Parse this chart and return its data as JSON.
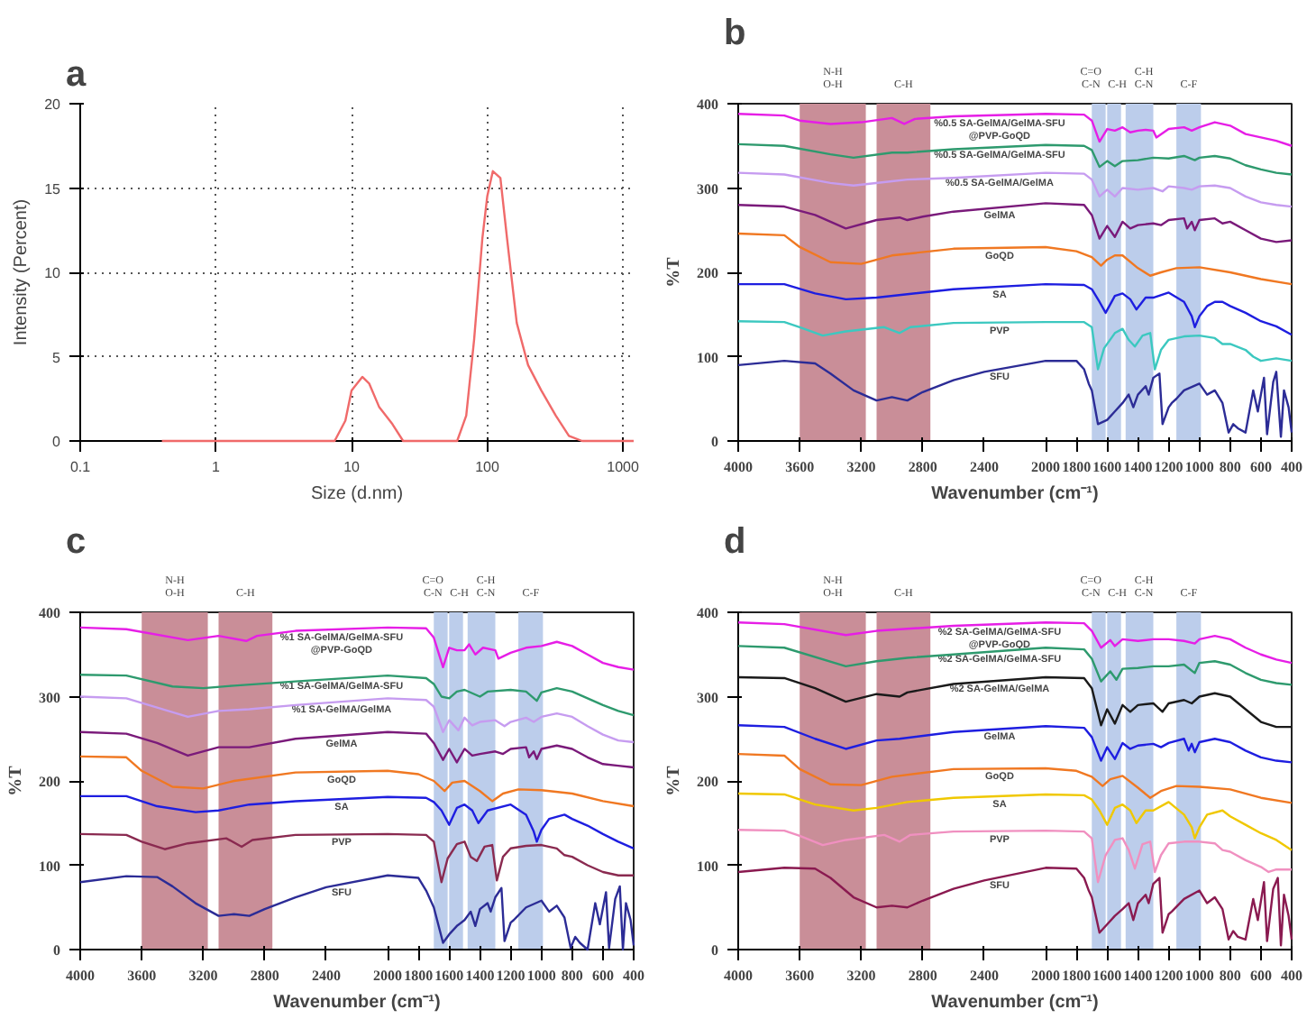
{
  "chart_data": [
    {
      "type": "line",
      "title": "a",
      "xlabel": "Size (d.nm)",
      "ylabel": "Intensity (Percent)",
      "log": "x",
      "grid": true,
      "xlim": [
        0.1,
        1200
      ],
      "ylim": [
        0,
        20
      ],
      "xticks": [
        0.1,
        1,
        10,
        100,
        1000
      ],
      "yticks": [
        0,
        5,
        10,
        15,
        20
      ],
      "series": [
        {
          "color": "#f06a6a",
          "x": [
            0.4,
            1,
            2,
            5,
            7.5,
            9,
            10,
            12,
            13.5,
            16,
            20,
            24,
            30,
            50,
            60,
            70,
            80,
            92,
            100,
            110,
            125,
            140,
            165,
            200,
            250,
            320,
            400,
            500,
            700,
            1000,
            1200
          ],
          "values": [
            0,
            0,
            0,
            0,
            0,
            1.2,
            3,
            3.8,
            3.4,
            2,
            1,
            0,
            0,
            0,
            0,
            1.5,
            6,
            12,
            14.5,
            16,
            15.6,
            12,
            7,
            4.5,
            3,
            1.5,
            0.3,
            0,
            0,
            0,
            0
          ]
        }
      ]
    },
    {
      "type": "line",
      "title": "b",
      "xlabel": "Wavenumber (cm⁻¹)",
      "ylabel": "%T",
      "xlim": [
        4000,
        400
      ],
      "ylim": [
        0,
        400
      ],
      "xticks": [
        4000,
        3600,
        3200,
        2800,
        2400,
        2000,
        1800,
        1600,
        1400,
        1200,
        1000,
        800,
        600,
        400
      ],
      "yticks": [
        0,
        100,
        200,
        300,
        400
      ],
      "bands": [
        {
          "axis": "x",
          "from": 3600,
          "to": 3170,
          "label": "N-H O-H",
          "color": "#c98e98"
        },
        {
          "axis": "x",
          "from": 3100,
          "to": 2750,
          "label": "C-H",
          "color": "#c98e98"
        },
        {
          "axis": "x",
          "from": 1700,
          "to": 1610,
          "label": "C=O C-N",
          "color": "#bccdeb"
        },
        {
          "axis": "x",
          "from": 1600,
          "to": 1510,
          "label": "C-H",
          "color": "#bccdeb"
        },
        {
          "axis": "x",
          "from": 1480,
          "to": 1300,
          "label": "C-H C-N",
          "color": "#bccdeb"
        },
        {
          "axis": "x",
          "from": 1150,
          "to": 990,
          "label": "C-F",
          "color": "#bccdeb"
        }
      ],
      "series": [
        {
          "name": "%0.5 SA-GelMA/GelMA-SFU @PVP-GoQD",
          "color": "#e61ee6",
          "x": [
            4000,
            3700,
            3600,
            3400,
            3200,
            3000,
            2920,
            2850,
            2600,
            2000,
            1750,
            1700,
            1650,
            1600,
            1550,
            1500,
            1450,
            1400,
            1350,
            1300,
            1280,
            1200,
            1100,
            1050,
            1000,
            900,
            800,
            700,
            600,
            500,
            400
          ],
          "values": [
            388,
            386,
            380,
            376,
            378,
            383,
            376,
            382,
            385,
            388,
            387,
            380,
            355,
            370,
            368,
            372,
            366,
            368,
            369,
            368,
            360,
            370,
            372,
            368,
            372,
            378,
            374,
            364,
            360,
            356,
            350
          ]
        },
        {
          "name": "%0.5 SA-GelMA/GelMA-SFU",
          "color": "#2e9a6e",
          "x": [
            4000,
            3700,
            3400,
            3250,
            3000,
            2900,
            2600,
            2000,
            1750,
            1700,
            1650,
            1600,
            1550,
            1500,
            1400,
            1300,
            1200,
            1100,
            1030,
            1000,
            900,
            800,
            700,
            600,
            500,
            400
          ],
          "values": [
            352,
            350,
            340,
            336,
            342,
            342,
            346,
            351,
            350,
            345,
            325,
            332,
            326,
            332,
            333,
            336,
            335,
            338,
            333,
            336,
            338,
            335,
            327,
            322,
            318,
            316
          ]
        },
        {
          "name": "%0.5 SA-GelMA/GelMA",
          "color": "#c69cf0",
          "x": [
            4000,
            3700,
            3400,
            3250,
            3000,
            2900,
            2600,
            2000,
            1750,
            1700,
            1650,
            1600,
            1550,
            1500,
            1400,
            1300,
            1240,
            1200,
            1100,
            1050,
            1000,
            900,
            800,
            700,
            600,
            500,
            400
          ],
          "values": [
            318,
            316,
            306,
            303,
            308,
            310,
            312,
            318,
            317,
            310,
            290,
            298,
            290,
            300,
            298,
            300,
            296,
            302,
            300,
            298,
            302,
            303,
            300,
            290,
            283,
            280,
            278
          ]
        },
        {
          "name": "GelMA",
          "color": "#7a1a7a",
          "x": [
            4000,
            3700,
            3500,
            3300,
            3100,
            2950,
            2900,
            2800,
            2600,
            2000,
            1750,
            1700,
            1650,
            1600,
            1550,
            1500,
            1450,
            1400,
            1300,
            1250,
            1200,
            1100,
            1080,
            1050,
            1030,
            1000,
            900,
            850,
            800,
            700,
            600,
            500,
            400
          ],
          "values": [
            280,
            278,
            268,
            252,
            262,
            265,
            262,
            266,
            272,
            282,
            280,
            268,
            240,
            255,
            242,
            260,
            252,
            256,
            258,
            256,
            262,
            264,
            252,
            260,
            250,
            262,
            264,
            258,
            260,
            250,
            240,
            236,
            238
          ]
        },
        {
          "name": "GoQD",
          "color": "#f07822",
          "x": [
            4000,
            3700,
            3600,
            3400,
            3200,
            3000,
            2600,
            2000,
            1800,
            1700,
            1640,
            1600,
            1550,
            1500,
            1400,
            1320,
            1250,
            1150,
            1000,
            800,
            600,
            400
          ],
          "values": [
            246,
            244,
            230,
            212,
            210,
            220,
            228,
            230,
            225,
            218,
            208,
            215,
            220,
            220,
            205,
            196,
            200,
            205,
            206,
            200,
            192,
            186
          ]
        },
        {
          "name": "SA",
          "color": "#1e1ee0",
          "x": [
            4000,
            3700,
            3500,
            3300,
            3100,
            2900,
            2600,
            2000,
            1750,
            1700,
            1650,
            1610,
            1550,
            1500,
            1450,
            1410,
            1350,
            1300,
            1200,
            1100,
            1050,
            1030,
            1000,
            950,
            900,
            850,
            800,
            700,
            600,
            500,
            400
          ],
          "values": [
            186,
            186,
            175,
            168,
            170,
            174,
            180,
            186,
            185,
            180,
            165,
            152,
            172,
            175,
            168,
            156,
            170,
            170,
            176,
            165,
            148,
            135,
            148,
            160,
            165,
            165,
            160,
            152,
            142,
            136,
            126
          ]
        },
        {
          "name": "PVP",
          "color": "#3cc8c0",
          "x": [
            4000,
            3700,
            3600,
            3450,
            3300,
            3050,
            2950,
            2880,
            2600,
            2000,
            1750,
            1700,
            1660,
            1620,
            1550,
            1500,
            1460,
            1420,
            1370,
            1320,
            1290,
            1250,
            1200,
            1100,
            1000,
            900,
            850,
            800,
            700,
            650,
            600,
            500,
            400
          ],
          "values": [
            142,
            141,
            135,
            125,
            130,
            135,
            128,
            135,
            140,
            141,
            141,
            135,
            85,
            110,
            128,
            133,
            120,
            112,
            125,
            128,
            85,
            108,
            120,
            124,
            125,
            122,
            115,
            115,
            108,
            100,
            95,
            98,
            95
          ]
        },
        {
          "name": "SFU",
          "color": "#2c2c96",
          "x": [
            4000,
            3700,
            3500,
            3400,
            3250,
            3100,
            3000,
            2900,
            2800,
            2600,
            2400,
            2000,
            1800,
            1750,
            1720,
            1700,
            1660,
            1600,
            1550,
            1500,
            1460,
            1430,
            1400,
            1350,
            1330,
            1300,
            1260,
            1240,
            1200,
            1180,
            1150,
            1100,
            1000,
            950,
            900,
            850,
            810,
            780,
            750,
            700,
            650,
            620,
            580,
            560,
            520,
            500,
            470,
            450,
            420,
            400
          ],
          "values": [
            90,
            95,
            92,
            80,
            60,
            48,
            52,
            48,
            58,
            72,
            82,
            95,
            95,
            85,
            68,
            60,
            20,
            25,
            35,
            45,
            55,
            40,
            55,
            65,
            55,
            75,
            80,
            20,
            40,
            45,
            50,
            60,
            68,
            55,
            60,
            45,
            10,
            20,
            15,
            10,
            60,
            35,
            75,
            8,
            70,
            82,
            5,
            60,
            40,
            10
          ]
        }
      ]
    },
    {
      "type": "line",
      "title": "c",
      "xlabel": "Wavenumber (cm⁻¹)",
      "ylabel": "%T",
      "xlim": [
        4000,
        400
      ],
      "ylim": [
        0,
        400
      ],
      "xticks": [
        4000,
        3600,
        3200,
        2800,
        2400,
        2000,
        1800,
        1600,
        1400,
        1200,
        1000,
        800,
        600,
        400
      ],
      "yticks": [
        0,
        100,
        200,
        300,
        400
      ],
      "bands": [
        {
          "axis": "x",
          "from": 3600,
          "to": 3170,
          "label": "N-H O-H",
          "color": "#c98e98"
        },
        {
          "axis": "x",
          "from": 3100,
          "to": 2750,
          "label": "C-H",
          "color": "#c98e98"
        },
        {
          "axis": "x",
          "from": 1700,
          "to": 1610,
          "label": "C=O C-N",
          "color": "#bccdeb"
        },
        {
          "axis": "x",
          "from": 1600,
          "to": 1510,
          "label": "C-H",
          "color": "#bccdeb"
        },
        {
          "axis": "x",
          "from": 1480,
          "to": 1300,
          "label": "C-H C-N",
          "color": "#bccdeb"
        },
        {
          "axis": "x",
          "from": 1150,
          "to": 990,
          "label": "C-F",
          "color": "#bccdeb"
        }
      ],
      "series": [
        {
          "name": "%1 SA-GelMA/GelMA-SFU @PVP-GoQD",
          "color": "#e61ee6",
          "x": [
            4000,
            3700,
            3300,
            3100,
            2920,
            2850,
            2600,
            2000,
            1750,
            1700,
            1640,
            1600,
            1550,
            1500,
            1470,
            1430,
            1380,
            1300,
            1280,
            1200,
            1100,
            1000,
            900,
            800,
            700,
            600,
            500,
            400
          ],
          "values": [
            382,
            380,
            367,
            372,
            366,
            372,
            378,
            382,
            381,
            370,
            335,
            358,
            355,
            355,
            362,
            350,
            358,
            355,
            345,
            352,
            358,
            360,
            365,
            360,
            350,
            340,
            335,
            332
          ]
        },
        {
          "name": "%1 SA-GelMA/GelMA-SFU",
          "color": "#2e9a6e",
          "x": [
            4000,
            3700,
            3400,
            3200,
            3000,
            2600,
            2000,
            1750,
            1700,
            1650,
            1600,
            1550,
            1500,
            1400,
            1350,
            1200,
            1100,
            1030,
            1000,
            900,
            800,
            700,
            600,
            500,
            400
          ],
          "values": [
            326,
            325,
            312,
            310,
            313,
            318,
            325,
            322,
            315,
            300,
            298,
            306,
            308,
            300,
            306,
            308,
            306,
            295,
            305,
            310,
            306,
            298,
            290,
            283,
            278
          ]
        },
        {
          "name": "%1 SA-GelMA/GelMA",
          "color": "#c69cf0",
          "x": [
            4000,
            3700,
            3300,
            3100,
            2900,
            2600,
            2000,
            1750,
            1700,
            1640,
            1600,
            1540,
            1500,
            1450,
            1400,
            1300,
            1240,
            1200,
            1100,
            1050,
            1000,
            900,
            800,
            700,
            600,
            500,
            400
          ],
          "values": [
            300,
            298,
            276,
            283,
            285,
            290,
            298,
            296,
            288,
            258,
            272,
            260,
            275,
            266,
            270,
            272,
            265,
            270,
            275,
            270,
            276,
            280,
            276,
            265,
            255,
            248,
            246
          ]
        },
        {
          "name": "GelMA",
          "color": "#7a1a7a",
          "x": [
            4000,
            3700,
            3500,
            3300,
            3100,
            2900,
            2600,
            2000,
            1750,
            1700,
            1640,
            1600,
            1550,
            1500,
            1450,
            1400,
            1300,
            1250,
            1200,
            1100,
            1080,
            1050,
            1030,
            1000,
            900,
            800,
            700,
            600,
            500,
            400
          ],
          "values": [
            258,
            256,
            245,
            230,
            240,
            240,
            250,
            258,
            256,
            245,
            225,
            238,
            222,
            238,
            230,
            232,
            235,
            232,
            238,
            240,
            228,
            235,
            226,
            238,
            242,
            238,
            228,
            220,
            218,
            216
          ]
        },
        {
          "name": "GoQD",
          "color": "#f07822",
          "x": [
            4000,
            3700,
            3600,
            3400,
            3200,
            3000,
            2600,
            2000,
            1800,
            1700,
            1630,
            1580,
            1500,
            1400,
            1320,
            1250,
            1150,
            1000,
            800,
            600,
            400
          ],
          "values": [
            229,
            228,
            212,
            193,
            191,
            200,
            210,
            212,
            208,
            200,
            188,
            198,
            200,
            188,
            176,
            185,
            190,
            189,
            185,
            176,
            170
          ]
        },
        {
          "name": "SA",
          "color": "#1e1ee0",
          "x": [
            4000,
            3700,
            3500,
            3250,
            3100,
            2900,
            2600,
            2000,
            1750,
            1700,
            1650,
            1600,
            1550,
            1500,
            1450,
            1410,
            1350,
            1200,
            1100,
            1050,
            1030,
            1000,
            950,
            850,
            800,
            700,
            600,
            500,
            400
          ],
          "values": [
            182,
            182,
            170,
            163,
            165,
            172,
            176,
            181,
            180,
            175,
            165,
            148,
            168,
            172,
            165,
            150,
            165,
            172,
            160,
            140,
            128,
            142,
            155,
            160,
            155,
            147,
            137,
            128,
            120
          ]
        },
        {
          "name": "PVP",
          "color": "#8a2a50",
          "x": [
            4000,
            3700,
            3600,
            3450,
            3300,
            3050,
            2950,
            2880,
            2600,
            2000,
            1750,
            1700,
            1650,
            1610,
            1550,
            1500,
            1460,
            1420,
            1370,
            1320,
            1290,
            1250,
            1200,
            1100,
            1000,
            900,
            850,
            800,
            700,
            600,
            500,
            400
          ],
          "values": [
            137,
            136,
            128,
            119,
            126,
            132,
            122,
            130,
            136,
            137,
            136,
            128,
            80,
            108,
            125,
            128,
            110,
            105,
            122,
            124,
            82,
            110,
            120,
            123,
            124,
            120,
            112,
            110,
            100,
            92,
            88,
            88
          ]
        },
        {
          "name": "SFU",
          "color": "#2c2c96",
          "x": [
            4000,
            3700,
            3500,
            3400,
            3250,
            3100,
            3000,
            2900,
            2800,
            2600,
            2400,
            2000,
            1800,
            1750,
            1720,
            1700,
            1640,
            1600,
            1550,
            1500,
            1460,
            1430,
            1400,
            1350,
            1330,
            1300,
            1260,
            1240,
            1200,
            1180,
            1100,
            1000,
            950,
            900,
            850,
            810,
            780,
            750,
            700,
            650,
            620,
            580,
            560,
            520,
            490,
            470,
            450,
            420,
            400
          ],
          "values": [
            80,
            87,
            86,
            75,
            55,
            40,
            42,
            40,
            48,
            62,
            74,
            88,
            85,
            70,
            58,
            50,
            8,
            18,
            28,
            35,
            45,
            28,
            48,
            55,
            45,
            62,
            73,
            10,
            32,
            35,
            50,
            58,
            45,
            52,
            38,
            2,
            15,
            8,
            0,
            55,
            30,
            68,
            2,
            60,
            75,
            0,
            55,
            35,
            5
          ]
        }
      ]
    },
    {
      "type": "line",
      "title": "d",
      "xlabel": "Wavenumber (cm⁻¹)",
      "ylabel": "%T",
      "xlim": [
        4000,
        400
      ],
      "ylim": [
        0,
        400
      ],
      "xticks": [
        4000,
        3600,
        3200,
        2800,
        2400,
        2000,
        1800,
        1600,
        1400,
        1200,
        1000,
        800,
        600,
        400
      ],
      "yticks": [
        0,
        100,
        200,
        300,
        400
      ],
      "bands": [
        {
          "axis": "x",
          "from": 3600,
          "to": 3170,
          "label": "N-H O-H",
          "color": "#c98e98"
        },
        {
          "axis": "x",
          "from": 3100,
          "to": 2750,
          "label": "C-H",
          "color": "#c98e98"
        },
        {
          "axis": "x",
          "from": 1700,
          "to": 1610,
          "label": "C=O C-N",
          "color": "#bccdeb"
        },
        {
          "axis": "x",
          "from": 1600,
          "to": 1510,
          "label": "C-H",
          "color": "#bccdeb"
        },
        {
          "axis": "x",
          "from": 1480,
          "to": 1300,
          "label": "C-H C-N",
          "color": "#bccdeb"
        },
        {
          "axis": "x",
          "from": 1150,
          "to": 990,
          "label": "C-F",
          "color": "#bccdeb"
        }
      ],
      "series": [
        {
          "name": "%2 SA-GelMA/GelMA-SFU @PVP-GoQD",
          "color": "#e61ee6",
          "x": [
            4000,
            3700,
            3300,
            3100,
            2600,
            2000,
            1750,
            1700,
            1640,
            1580,
            1550,
            1500,
            1400,
            1300,
            1200,
            1100,
            1030,
            1000,
            900,
            800,
            700,
            600,
            500,
            400
          ],
          "values": [
            388,
            386,
            373,
            378,
            384,
            388,
            387,
            378,
            358,
            367,
            360,
            368,
            366,
            368,
            368,
            366,
            363,
            368,
            372,
            368,
            358,
            350,
            344,
            340
          ]
        },
        {
          "name": "%2 SA-GelMA/GelMA-SFU",
          "color": "#2e9a6e",
          "x": [
            4000,
            3700,
            3300,
            3100,
            2900,
            2600,
            2000,
            1750,
            1700,
            1640,
            1580,
            1540,
            1500,
            1400,
            1300,
            1200,
            1100,
            1030,
            1000,
            900,
            800,
            700,
            600,
            500,
            400
          ],
          "values": [
            360,
            358,
            336,
            342,
            346,
            350,
            358,
            356,
            345,
            318,
            330,
            320,
            333,
            334,
            336,
            336,
            338,
            328,
            340,
            342,
            338,
            328,
            320,
            316,
            314
          ]
        },
        {
          "name": "%2 SA-GelMA/GelMA",
          "color": "#1a1a1a",
          "x": [
            4000,
            3700,
            3500,
            3300,
            3100,
            2950,
            2900,
            2600,
            2000,
            1750,
            1700,
            1640,
            1600,
            1550,
            1500,
            1450,
            1400,
            1300,
            1240,
            1200,
            1100,
            1050,
            1000,
            900,
            800,
            700,
            600,
            500,
            400
          ],
          "values": [
            323,
            322,
            310,
            294,
            303,
            300,
            305,
            315,
            323,
            322,
            310,
            266,
            285,
            268,
            290,
            282,
            290,
            292,
            282,
            292,
            296,
            292,
            300,
            304,
            300,
            285,
            270,
            264,
            264
          ]
        },
        {
          "name": "GelMA",
          "color": "#1e1ee0",
          "x": [
            4000,
            3700,
            3500,
            3300,
            3100,
            2950,
            2600,
            2000,
            1750,
            1700,
            1640,
            1600,
            1550,
            1500,
            1450,
            1400,
            1300,
            1250,
            1200,
            1100,
            1070,
            1050,
            1030,
            1000,
            900,
            800,
            700,
            600,
            500,
            400
          ],
          "values": [
            266,
            264,
            250,
            238,
            248,
            250,
            258,
            265,
            263,
            252,
            224,
            240,
            226,
            245,
            238,
            242,
            244,
            240,
            245,
            250,
            236,
            244,
            234,
            246,
            250,
            246,
            236,
            228,
            224,
            222
          ]
        },
        {
          "name": "GoQD",
          "color": "#f07822",
          "x": [
            4000,
            3700,
            3600,
            3400,
            3200,
            3000,
            2600,
            2000,
            1800,
            1700,
            1630,
            1580,
            1500,
            1400,
            1320,
            1250,
            1150,
            1000,
            800,
            600,
            400
          ],
          "values": [
            232,
            230,
            214,
            196,
            195,
            205,
            214,
            215,
            212,
            205,
            194,
            202,
            206,
            192,
            180,
            188,
            194,
            193,
            190,
            180,
            174
          ]
        },
        {
          "name": "SA",
          "color": "#f0c800",
          "x": [
            4000,
            3700,
            3500,
            3250,
            3100,
            2900,
            2600,
            2000,
            1750,
            1700,
            1650,
            1600,
            1550,
            1500,
            1450,
            1410,
            1350,
            1300,
            1200,
            1100,
            1050,
            1030,
            1000,
            950,
            850,
            800,
            700,
            600,
            500,
            400
          ],
          "values": [
            185,
            184,
            172,
            165,
            168,
            175,
            180,
            184,
            183,
            178,
            165,
            148,
            168,
            172,
            165,
            150,
            165,
            165,
            175,
            160,
            145,
            132,
            145,
            160,
            165,
            158,
            148,
            138,
            130,
            118
          ]
        },
        {
          "name": "PVP",
          "color": "#f090c0",
          "x": [
            4000,
            3700,
            3600,
            3450,
            3300,
            3050,
            2950,
            2880,
            2600,
            2000,
            1750,
            1700,
            1660,
            1610,
            1550,
            1500,
            1460,
            1420,
            1370,
            1320,
            1290,
            1250,
            1200,
            1100,
            1000,
            900,
            850,
            800,
            700,
            600,
            550,
            500,
            400
          ],
          "values": [
            142,
            141,
            135,
            124,
            130,
            136,
            128,
            136,
            140,
            141,
            140,
            132,
            80,
            112,
            130,
            132,
            118,
            96,
            125,
            128,
            92,
            112,
            126,
            128,
            128,
            126,
            118,
            116,
            106,
            98,
            92,
            95,
            95
          ]
        },
        {
          "name": "SFU",
          "color": "#8a1a50",
          "x": [
            4000,
            3700,
            3500,
            3400,
            3250,
            3100,
            3000,
            2900,
            2800,
            2600,
            2400,
            2000,
            1800,
            1750,
            1720,
            1700,
            1650,
            1600,
            1550,
            1500,
            1460,
            1430,
            1400,
            1350,
            1330,
            1300,
            1260,
            1240,
            1200,
            1180,
            1100,
            1000,
            950,
            900,
            850,
            810,
            780,
            750,
            700,
            650,
            620,
            580,
            560,
            520,
            490,
            470,
            450,
            420,
            400
          ],
          "values": [
            92,
            97,
            96,
            85,
            62,
            50,
            52,
            50,
            58,
            72,
            82,
            97,
            96,
            85,
            70,
            62,
            20,
            30,
            40,
            48,
            55,
            35,
            55,
            65,
            55,
            78,
            85,
            20,
            42,
            45,
            60,
            70,
            55,
            62,
            48,
            12,
            22,
            15,
            12,
            60,
            35,
            80,
            10,
            72,
            85,
            5,
            65,
            40,
            12
          ]
        }
      ]
    }
  ]
}
